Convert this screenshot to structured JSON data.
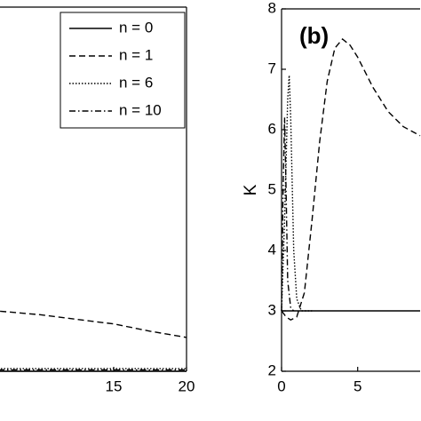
{
  "chart_data": [
    {
      "type": "line",
      "xlim": [
        0,
        20
      ],
      "xticks": [
        15,
        20
      ],
      "ylim": [
        0,
        1
      ],
      "legend": "upper right",
      "series": [
        {
          "name": "n = 0",
          "style": "solid",
          "color": "#000000",
          "x": [
            0,
            20
          ],
          "values": [
            0,
            0
          ]
        },
        {
          "name": "n = 1",
          "style": "dashed",
          "color": "#000000",
          "x": [
            7.2,
            10,
            12,
            15,
            17.5,
            20
          ],
          "values": [
            0.165,
            0.155,
            0.145,
            0.13,
            0.11,
            0.093
          ]
        },
        {
          "name": "n = 6",
          "style": "dotted",
          "color": "#000000",
          "x": [
            0,
            20
          ],
          "values": [
            0.007,
            0.007
          ]
        },
        {
          "name": "n = 10",
          "style": "dashdot",
          "color": "#000000",
          "x": [
            0,
            20
          ],
          "values": [
            0.004,
            0.004
          ]
        }
      ]
    },
    {
      "type": "line",
      "label": "(b)",
      "ylabel": "K",
      "xlim": [
        0,
        9.1
      ],
      "xticks": [
        0,
        5
      ],
      "ylim": [
        2,
        8
      ],
      "yticks": [
        2,
        3,
        4,
        5,
        6,
        7,
        8
      ],
      "series": [
        {
          "style": "solid",
          "color": "#000000",
          "x": [
            0,
            9.1
          ],
          "values": [
            3,
            3
          ]
        },
        {
          "style": "dashed",
          "color": "#000000",
          "x": [
            0,
            0.3,
            0.6,
            1,
            1.5,
            2,
            2.5,
            3,
            3.5,
            4,
            4.5,
            5,
            6,
            7,
            8,
            9.1
          ],
          "values": [
            3,
            2.9,
            2.85,
            2.9,
            3.3,
            4.5,
            5.8,
            6.8,
            7.35,
            7.5,
            7.4,
            7.2,
            6.7,
            6.3,
            6.05,
            5.9
          ]
        },
        {
          "style": "dotted",
          "color": "#000000",
          "x": [
            0,
            0.2,
            0.4,
            0.5,
            0.6,
            0.8,
            1.0,
            1.3,
            1.6,
            2
          ],
          "values": [
            3,
            4.5,
            6.5,
            6.9,
            6.2,
            4,
            3.2,
            3.0,
            3.0,
            3.0
          ]
        },
        {
          "style": "dashdot",
          "color": "#000000",
          "x": [
            0,
            0.1,
            0.2,
            0.3,
            0.4,
            0.6,
            0.8
          ],
          "values": [
            3,
            5,
            6.2,
            5,
            3.5,
            3.05,
            3
          ]
        }
      ]
    }
  ]
}
